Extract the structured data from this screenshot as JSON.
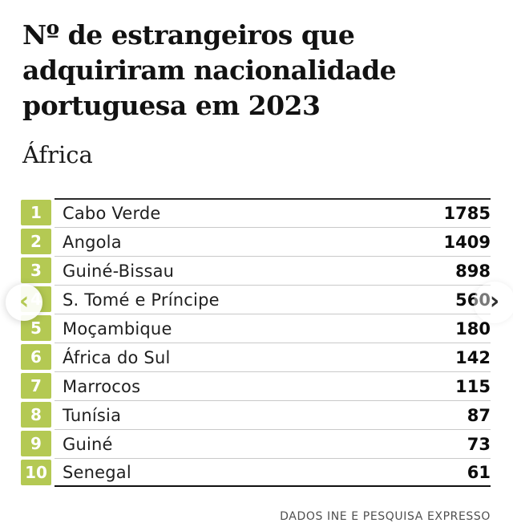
{
  "header": {
    "title_lines": [
      "Nº de estrangeiros que",
      "adquiriram nacionalidade",
      "portuguesa em 2023"
    ],
    "subtitle": "África"
  },
  "chart_data": {
    "type": "table",
    "title": "Nº de estrangeiros que adquiriram nacionalidade portuguesa em 2023",
    "subtitle": "África",
    "columns": [
      "rank",
      "country",
      "value"
    ],
    "rows": [
      {
        "rank": "1",
        "country": "Cabo Verde",
        "value": "1785"
      },
      {
        "rank": "2",
        "country": "Angola",
        "value": "1409"
      },
      {
        "rank": "3",
        "country": "Guiné-Bissau",
        "value": "898"
      },
      {
        "rank": "4",
        "country": "S. Tomé e Príncipe",
        "value": "560"
      },
      {
        "rank": "5",
        "country": "Moçambique",
        "value": "180"
      },
      {
        "rank": "6",
        "country": "África do Sul",
        "value": "142"
      },
      {
        "rank": "7",
        "country": "Marrocos",
        "value": "115"
      },
      {
        "rank": "8",
        "country": "Tunísia",
        "value": "87"
      },
      {
        "rank": "9",
        "country": "Guiné",
        "value": "73"
      },
      {
        "rank": "10",
        "country": "Senegal",
        "value": "61"
      }
    ]
  },
  "carousel": {
    "prev_label": "‹",
    "next_label": "›"
  },
  "footer": {
    "source": "DADOS INE E PESQUISA EXPRESSO"
  },
  "colors": {
    "accent_green": "#b4c953",
    "rank_text": "#ffffff",
    "row_divider": "#c9c9c9",
    "table_border": "#2a2a2a",
    "table_border_strong": "#101010"
  }
}
